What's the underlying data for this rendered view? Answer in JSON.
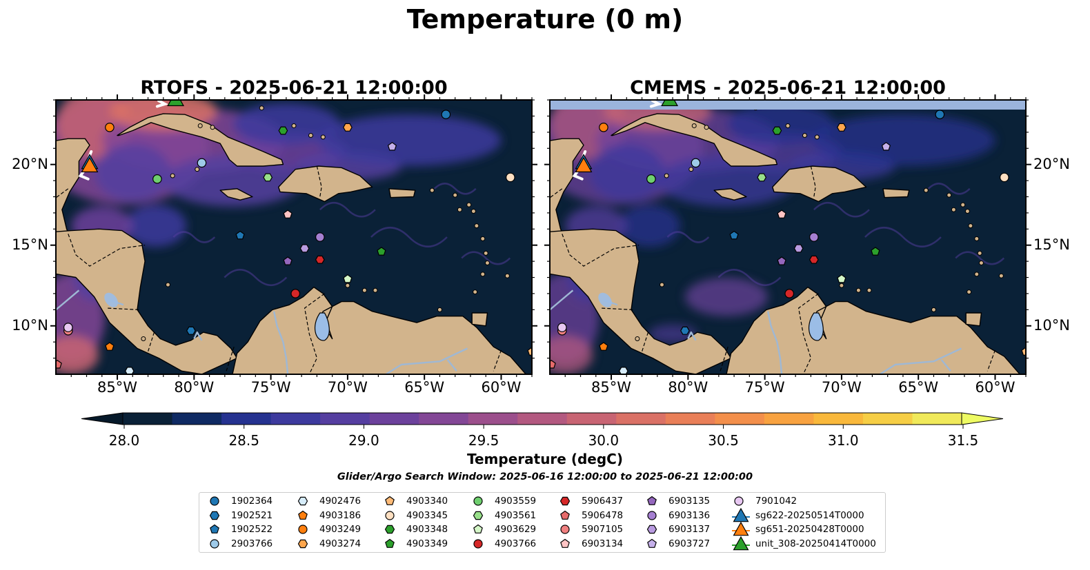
{
  "title": "Temperature (0 m)",
  "panels": [
    {
      "title": "RTOFS - 2025-06-21 12:00:00"
    },
    {
      "title": "CMEMS - 2025-06-21 12:00:00"
    }
  ],
  "lon_ticks": [
    "85°W",
    "80°W",
    "75°W",
    "70°W",
    "65°W",
    "60°W"
  ],
  "lat_ticks": [
    "20°N",
    "15°N",
    "10°N"
  ],
  "colorbar": {
    "label": "Temperature (degC)",
    "range": [
      28.0,
      31.5
    ],
    "ticks": [
      "28.0",
      "28.5",
      "29.0",
      "29.5",
      "30.0",
      "30.5",
      "31.0",
      "31.5"
    ],
    "colors": [
      "#0a2137",
      "#0f2a63",
      "#253290",
      "#3d3a9e",
      "#553ea0",
      "#6c419c",
      "#834796",
      "#9c4f8c",
      "#b35980",
      "#c86473",
      "#da7166",
      "#e97f58",
      "#f38f4b",
      "#f8a240",
      "#f9b83b",
      "#f6ce45",
      "#f0e95a"
    ],
    "under_color": "#06192a",
    "over_color": "#eefb63"
  },
  "search_window": "Glider/Argo Search Window: 2025-06-16 12:00:00 to 2025-06-21 12:00:00",
  "legend": [
    {
      "label": "1902364",
      "shape": "circle",
      "color": "#1f77b4"
    },
    {
      "label": "1902521",
      "shape": "hexagon",
      "color": "#1f77b4"
    },
    {
      "label": "1902522",
      "shape": "pentagon",
      "color": "#1f77b4"
    },
    {
      "label": "2903766",
      "shape": "circle",
      "color": "#9ecae9"
    },
    {
      "label": "4902476",
      "shape": "hexagon",
      "color": "#d6ecfa"
    },
    {
      "label": "4903186",
      "shape": "pentagon",
      "color": "#ff7f0e"
    },
    {
      "label": "4903249",
      "shape": "circle",
      "color": "#ff7f0e"
    },
    {
      "label": "4903274",
      "shape": "hexagon",
      "color": "#ffa64d"
    },
    {
      "label": "4903340",
      "shape": "pentagon",
      "color": "#ffbb78"
    },
    {
      "label": "4903345",
      "shape": "circle",
      "color": "#ffe0c2"
    },
    {
      "label": "4903348",
      "shape": "hexagon",
      "color": "#2ca02c"
    },
    {
      "label": "4903349",
      "shape": "pentagon",
      "color": "#2ca02c"
    },
    {
      "label": "4903559",
      "shape": "circle",
      "color": "#6fcf6f"
    },
    {
      "label": "4903561",
      "shape": "hexagon",
      "color": "#98df8a"
    },
    {
      "label": "4903629",
      "shape": "pentagon",
      "color": "#d5f7c8"
    },
    {
      "label": "4903766",
      "shape": "circle",
      "color": "#d62728"
    },
    {
      "label": "5906437",
      "shape": "hexagon",
      "color": "#d62728"
    },
    {
      "label": "5906478",
      "shape": "pentagon",
      "color": "#e66b6b"
    },
    {
      "label": "5907105",
      "shape": "circle",
      "color": "#f08080"
    },
    {
      "label": "6903134",
      "shape": "pentagon",
      "color": "#ffc4c4"
    },
    {
      "label": "6903135",
      "shape": "pentagon",
      "color": "#9467bd"
    },
    {
      "label": "6903136",
      "shape": "circle",
      "color": "#a57fd1"
    },
    {
      "label": "6903137",
      "shape": "hexagon",
      "color": "#b99be0"
    },
    {
      "label": "6903727",
      "shape": "pentagon",
      "color": "#c5b0ea"
    },
    {
      "label": "7901042",
      "shape": "circle",
      "color": "#e8c8f2"
    },
    {
      "label": "sg622-20250514T0000",
      "shape": "triangle-line",
      "color": "#1f77b4"
    },
    {
      "label": "sg651-20250428T0000",
      "shape": "triangle-line",
      "color": "#ff7f0e"
    },
    {
      "label": "unit_308-20250414T0000",
      "shape": "triangle-line",
      "color": "#2ca02c"
    }
  ],
  "colors": {
    "land": "#d2b48c",
    "coast": "#000000",
    "river": "#9fb8d4",
    "lake": "#9bbde6",
    "nodata": "#9bb4dc"
  }
}
